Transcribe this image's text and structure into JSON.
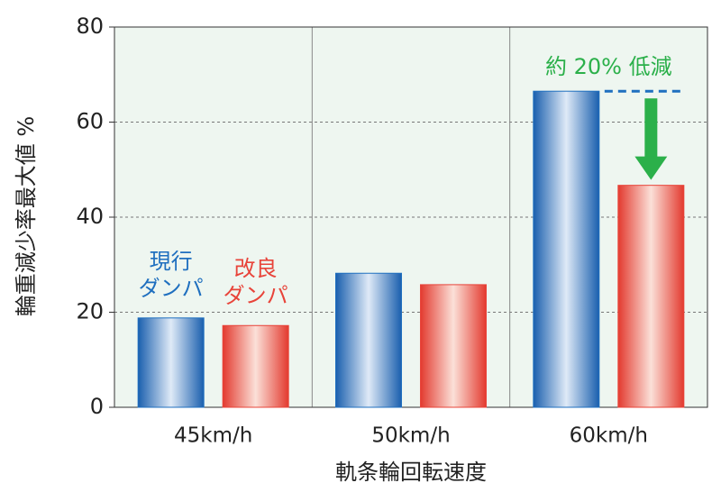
{
  "chart_data": {
    "type": "bar",
    "y_label": "輪重減少率最大値 %",
    "x_label": "軌条輪回転速度",
    "categories": [
      "45km/h",
      "50km/h",
      "60km/h"
    ],
    "series": [
      {
        "name": "現行\nダンパ",
        "color": "#1f6fbf",
        "values": [
          18.8,
          28.2,
          66.5
        ]
      },
      {
        "name": "改良\nダンパ",
        "color": "#e8443a",
        "values": [
          17.2,
          25.8,
          46.7
        ]
      }
    ],
    "annotation": "約 20% 低減",
    "annotation_color": "#2bb04a",
    "ylim": [
      0,
      80
    ],
    "yticks": [
      0,
      20,
      40,
      60,
      80
    ],
    "grid": true
  }
}
